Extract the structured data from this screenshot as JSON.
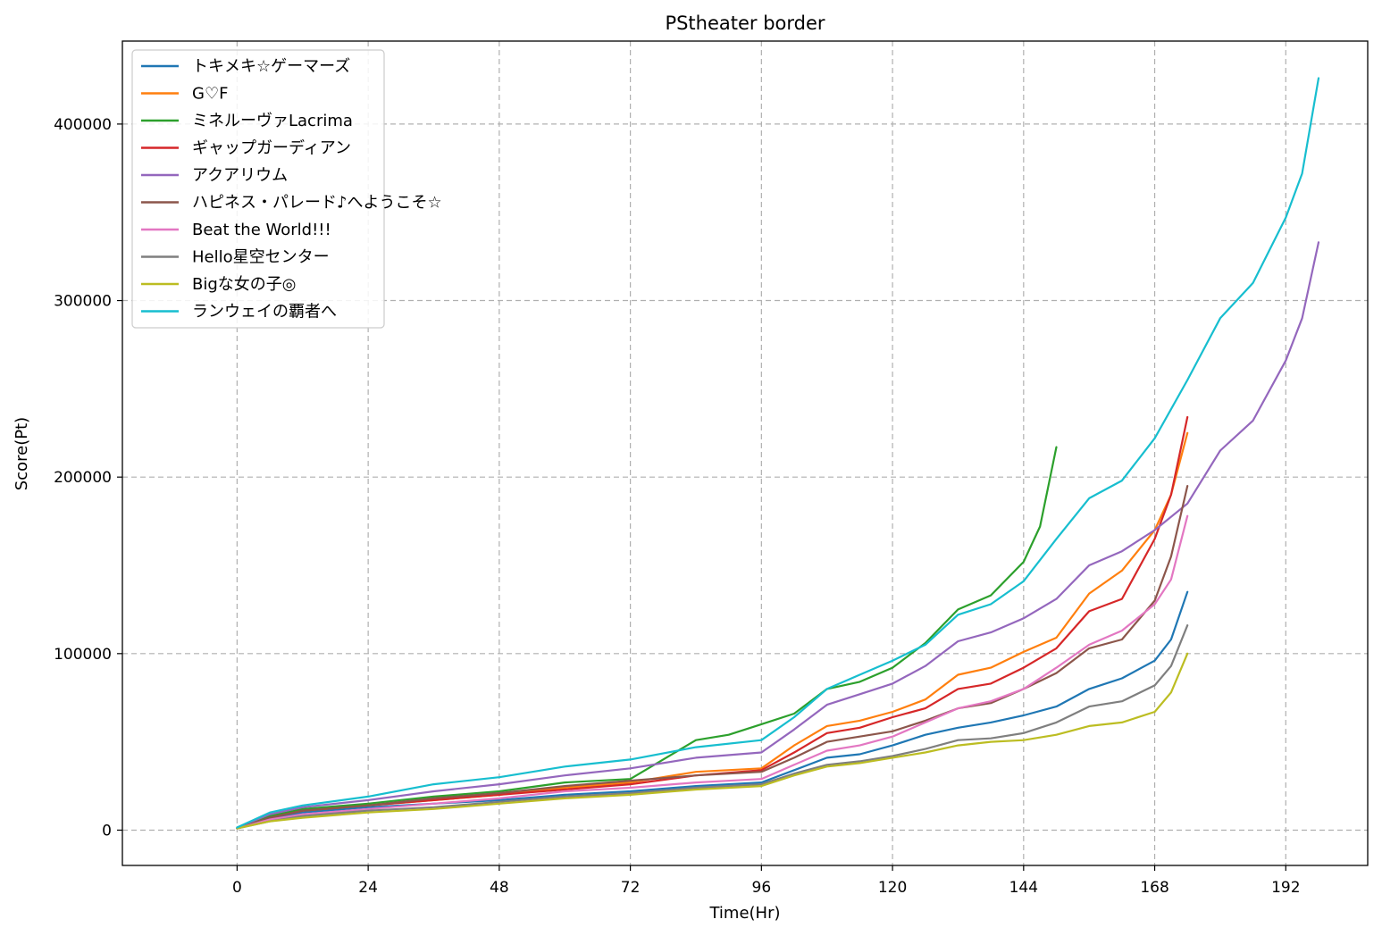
{
  "chart_data": {
    "type": "line",
    "title": "PStheater border",
    "xlabel": "Time(Hr)",
    "ylabel": "Score(Pt)",
    "xlim": [
      -21,
      207
    ],
    "ylim": [
      -20000,
      447000
    ],
    "xticks": [
      0,
      24,
      48,
      72,
      96,
      120,
      144,
      168,
      192
    ],
    "yticks": [
      0,
      100000,
      200000,
      300000,
      400000
    ],
    "grid": true,
    "legend_position": "top-left",
    "series": [
      {
        "name": "トキメキ☆ゲーマーズ",
        "color": "#1f77b4",
        "x": [
          0,
          6,
          12,
          24,
          36,
          48,
          60,
          72,
          84,
          96,
          102,
          108,
          114,
          120,
          126,
          132,
          138,
          144,
          150,
          156,
          162,
          168,
          171,
          174
        ],
        "y": [
          1000,
          6000,
          10000,
          13000,
          15000,
          17000,
          20000,
          22000,
          25000,
          27000,
          34000,
          41000,
          43000,
          48000,
          54000,
          58000,
          61000,
          65000,
          70000,
          80000,
          86000,
          96000,
          108000,
          135000
        ]
      },
      {
        "name": "G♡F",
        "color": "#ff7f0e",
        "x": [
          0,
          6,
          12,
          24,
          36,
          48,
          60,
          72,
          84,
          96,
          102,
          108,
          114,
          120,
          126,
          132,
          138,
          144,
          150,
          156,
          162,
          168,
          171,
          174
        ],
        "y": [
          1000,
          7000,
          11000,
          14000,
          17000,
          20000,
          24000,
          27000,
          33000,
          35000,
          48000,
          59000,
          62000,
          67000,
          74000,
          88000,
          92000,
          101000,
          109000,
          134000,
          147000,
          170000,
          190000,
          225000
        ]
      },
      {
        "name": "ミネルーヴァLacrima",
        "color": "#2ca02c",
        "x": [
          0,
          6,
          12,
          24,
          36,
          48,
          60,
          72,
          78,
          84,
          90,
          96,
          102,
          108,
          114,
          120,
          126,
          132,
          138,
          144,
          147,
          150
        ],
        "y": [
          1000,
          8000,
          12000,
          15000,
          19000,
          22000,
          27000,
          29000,
          40000,
          51000,
          54000,
          60000,
          66000,
          80000,
          84000,
          92000,
          106000,
          125000,
          133000,
          152000,
          172000,
          217000
        ]
      },
      {
        "name": "ギャップガーディアン",
        "color": "#d62728",
        "x": [
          0,
          6,
          12,
          24,
          36,
          48,
          60,
          72,
          84,
          96,
          102,
          108,
          114,
          120,
          126,
          132,
          138,
          144,
          150,
          156,
          162,
          168,
          171,
          174
        ],
        "y": [
          1000,
          7000,
          11000,
          14000,
          17000,
          20000,
          23000,
          26000,
          31000,
          34000,
          44000,
          55000,
          58000,
          64000,
          69000,
          80000,
          83000,
          92000,
          103000,
          124000,
          131000,
          165000,
          190000,
          234000
        ]
      },
      {
        "name": "アクアリウム",
        "color": "#9467bd",
        "x": [
          0,
          6,
          12,
          24,
          36,
          48,
          60,
          72,
          84,
          96,
          102,
          108,
          114,
          120,
          126,
          132,
          138,
          144,
          150,
          156,
          162,
          168,
          174,
          180,
          186,
          192,
          195,
          198
        ],
        "y": [
          1500,
          9000,
          13000,
          17000,
          22000,
          26000,
          31000,
          35000,
          41000,
          44000,
          57000,
          71000,
          77000,
          83000,
          93000,
          107000,
          112000,
          120000,
          131000,
          150000,
          158000,
          170000,
          185000,
          215000,
          232000,
          266000,
          290000,
          333000
        ]
      },
      {
        "name": "ハピネス・パレード♪へようこそ☆",
        "color": "#8c564b",
        "x": [
          0,
          6,
          12,
          24,
          36,
          48,
          60,
          72,
          84,
          96,
          102,
          108,
          114,
          120,
          126,
          132,
          138,
          144,
          150,
          156,
          162,
          168,
          171,
          174
        ],
        "y": [
          1000,
          7000,
          11000,
          14000,
          18000,
          21000,
          25000,
          28000,
          31000,
          33000,
          41000,
          50000,
          53000,
          56000,
          62000,
          69000,
          72000,
          80000,
          89000,
          103000,
          108000,
          130000,
          155000,
          195000
        ]
      },
      {
        "name": "Beat the World!!!",
        "color": "#e377c2",
        "x": [
          0,
          6,
          12,
          24,
          36,
          48,
          60,
          72,
          84,
          96,
          102,
          108,
          114,
          120,
          126,
          132,
          138,
          144,
          150,
          156,
          162,
          168,
          171,
          174
        ],
        "y": [
          1000,
          6000,
          9000,
          12000,
          15000,
          18000,
          22000,
          24000,
          27000,
          29000,
          37000,
          45000,
          48000,
          53000,
          61000,
          69000,
          73000,
          80000,
          92000,
          105000,
          113000,
          128000,
          142000,
          178000
        ]
      },
      {
        "name": "Hello星空センター",
        "color": "#7f7f7f",
        "x": [
          0,
          6,
          12,
          24,
          36,
          48,
          60,
          72,
          84,
          96,
          102,
          108,
          114,
          120,
          126,
          132,
          138,
          144,
          150,
          156,
          162,
          168,
          171,
          174
        ],
        "y": [
          1000,
          5000,
          8000,
          11000,
          13000,
          16000,
          19000,
          21000,
          24000,
          26000,
          32000,
          37000,
          39000,
          42000,
          46000,
          51000,
          52000,
          55000,
          61000,
          70000,
          73000,
          82000,
          93000,
          116000
        ]
      },
      {
        "name": "Bigな女の子◎",
        "color": "#bcbd22",
        "x": [
          0,
          6,
          12,
          24,
          36,
          48,
          60,
          72,
          84,
          96,
          102,
          108,
          114,
          120,
          126,
          132,
          138,
          144,
          150,
          156,
          162,
          168,
          171,
          174
        ],
        "y": [
          1000,
          5000,
          7000,
          10000,
          12000,
          15000,
          18000,
          20000,
          23000,
          25000,
          31000,
          36000,
          38000,
          41000,
          44000,
          48000,
          50000,
          51000,
          54000,
          59000,
          61000,
          67000,
          78000,
          100000
        ]
      },
      {
        "name": "ランウェイの覇者へ",
        "color": "#17becf",
        "x": [
          0,
          6,
          12,
          24,
          36,
          48,
          60,
          72,
          84,
          96,
          102,
          108,
          114,
          120,
          126,
          132,
          138,
          144,
          150,
          156,
          162,
          168,
          174,
          180,
          186,
          192,
          195,
          198
        ],
        "y": [
          1500,
          10000,
          14000,
          19000,
          26000,
          30000,
          36000,
          40000,
          47000,
          51000,
          64000,
          80000,
          88000,
          96000,
          105000,
          122000,
          128000,
          141000,
          165000,
          188000,
          198000,
          222000,
          255000,
          290000,
          310000,
          347000,
          372000,
          426000
        ]
      }
    ]
  }
}
